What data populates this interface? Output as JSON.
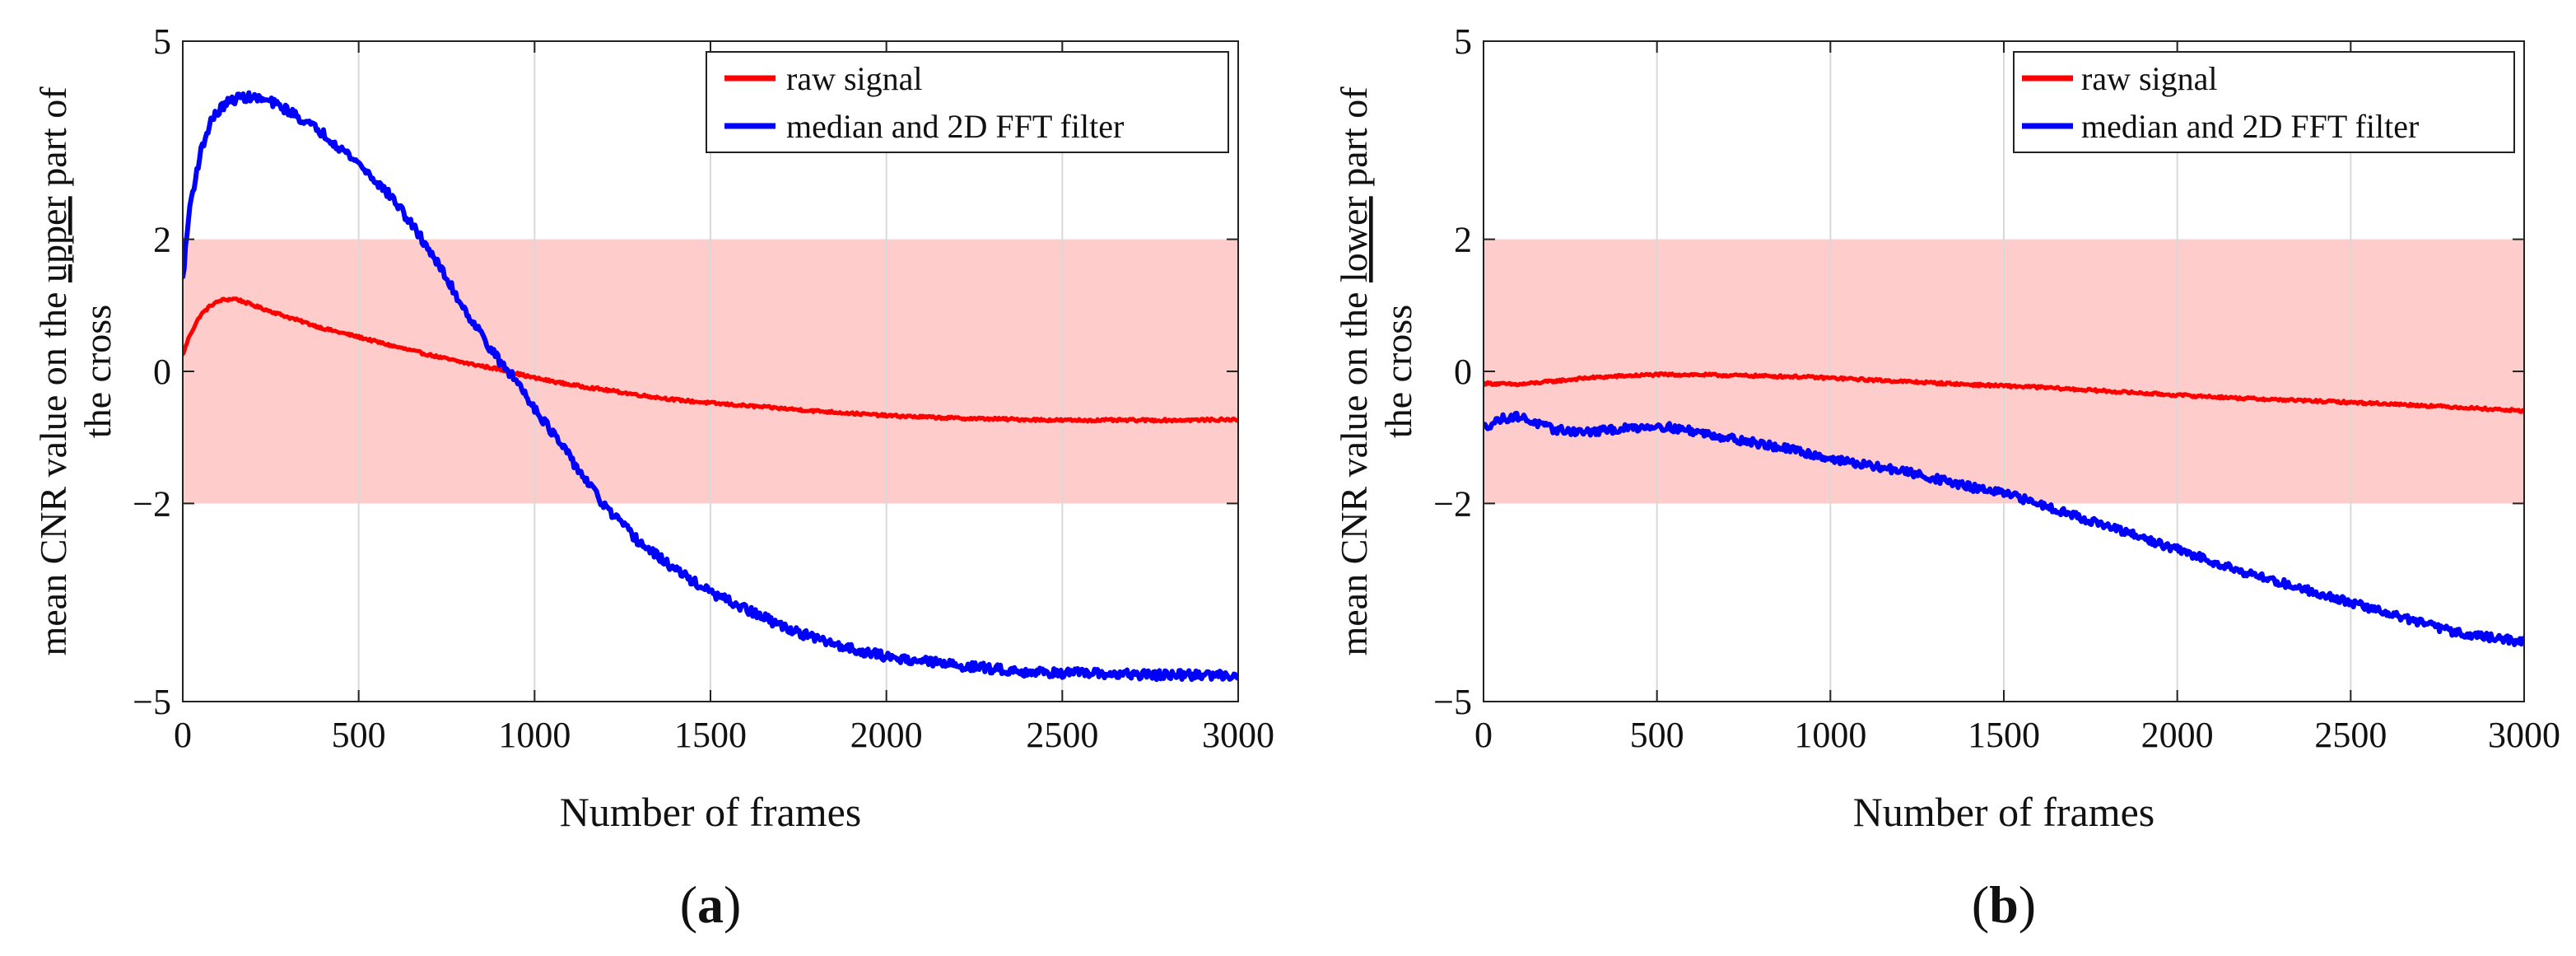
{
  "figure": {
    "panel_labels": [
      {
        "open": "(",
        "letter": "a",
        "close": ")"
      },
      {
        "open": "(",
        "letter": "b",
        "close": ")"
      }
    ]
  },
  "chart_data": [
    {
      "type": "line",
      "panel": "a",
      "xlabel": "Number of frames",
      "ylabel": {
        "line1_prefix": "mean CNR value on the ",
        "line1_underlined": "upper",
        "line1_suffix": " part of",
        "line2": "the cross"
      },
      "xlim": [
        0,
        3000
      ],
      "ylim": [
        -5,
        5
      ],
      "xticks": [
        0,
        500,
        1000,
        1500,
        2000,
        2500,
        3000
      ],
      "yticks": [
        -5,
        -2,
        0,
        2,
        5
      ],
      "xtick_labels": [
        "0",
        "500",
        "1000",
        "1500",
        "2000",
        "2500",
        "3000"
      ],
      "ytick_labels": [
        "−5",
        "−2",
        "0",
        "2",
        "5"
      ],
      "grid": "vertical",
      "legend_position": "top-right",
      "shaded_band": {
        "y_from": -2,
        "y_to": 2,
        "color": "#ffcccc"
      },
      "series": [
        {
          "name": "raw signal",
          "color": "#ff0000",
          "noise": 0.02,
          "x": [
            0,
            20,
            50,
            80,
            110,
            150,
            200,
            300,
            400,
            500,
            600,
            700,
            800,
            900,
            1000,
            1100,
            1200,
            1300,
            1400,
            1500,
            1600,
            1800,
            2000,
            2200,
            2500,
            2800,
            3000
          ],
          "y": [
            0.25,
            0.55,
            0.85,
            1.0,
            1.08,
            1.1,
            1.0,
            0.82,
            0.65,
            0.52,
            0.38,
            0.25,
            0.13,
            0.03,
            -0.1,
            -0.2,
            -0.28,
            -0.36,
            -0.43,
            -0.48,
            -0.52,
            -0.6,
            -0.67,
            -0.71,
            -0.74,
            -0.74,
            -0.73
          ]
        },
        {
          "name": "median and 2D FFT filter",
          "color": "#0000ff",
          "noise": 0.07,
          "x": [
            0,
            20,
            50,
            80,
            120,
            160,
            200,
            250,
            300,
            400,
            500,
            600,
            700,
            800,
            900,
            950,
            1000,
            1100,
            1200,
            1300,
            1400,
            1500,
            1600,
            1700,
            1800,
            1900,
            2000,
            2200,
            2400,
            2600,
            2800,
            3000
          ],
          "y": [
            1.4,
            2.5,
            3.3,
            3.8,
            4.05,
            4.15,
            4.15,
            4.08,
            3.95,
            3.6,
            3.15,
            2.6,
            1.85,
            0.95,
            0.15,
            -0.15,
            -0.55,
            -1.3,
            -2.05,
            -2.6,
            -3.0,
            -3.35,
            -3.6,
            -3.85,
            -4.05,
            -4.2,
            -4.32,
            -4.45,
            -4.55,
            -4.58,
            -4.6,
            -4.6
          ]
        }
      ]
    },
    {
      "type": "line",
      "panel": "b",
      "xlabel": "Number of frames",
      "ylabel": {
        "line1_prefix": "mean CNR value on the ",
        "line1_underlined": "lower",
        "line1_suffix": " part of",
        "line2": "the cross"
      },
      "xlim": [
        0,
        3000
      ],
      "ylim": [
        -5,
        5
      ],
      "xticks": [
        0,
        500,
        1000,
        1500,
        2000,
        2500,
        3000
      ],
      "yticks": [
        -5,
        -2,
        0,
        2,
        5
      ],
      "xtick_labels": [
        "0",
        "500",
        "1000",
        "1500",
        "2000",
        "2500",
        "3000"
      ],
      "ytick_labels": [
        "−5",
        "−2",
        "0",
        "2",
        "5"
      ],
      "grid": "vertical",
      "legend_position": "top-right",
      "shaded_band": {
        "y_from": -2,
        "y_to": 2,
        "color": "#ffcccc"
      },
      "series": [
        {
          "name": "raw signal",
          "color": "#ff0000",
          "noise": 0.02,
          "x": [
            0,
            100,
            200,
            300,
            400,
            500,
            600,
            700,
            800,
            900,
            1000,
            1200,
            1400,
            1600,
            1800,
            2000,
            2200,
            2400,
            2600,
            2800,
            3000
          ],
          "y": [
            -0.18,
            -0.2,
            -0.15,
            -0.1,
            -0.07,
            -0.05,
            -0.05,
            -0.06,
            -0.07,
            -0.08,
            -0.1,
            -0.15,
            -0.2,
            -0.24,
            -0.3,
            -0.36,
            -0.41,
            -0.45,
            -0.49,
            -0.54,
            -0.6
          ]
        },
        {
          "name": "median and 2D FFT filter",
          "color": "#0000ff",
          "noise": 0.06,
          "x": [
            0,
            50,
            100,
            150,
            200,
            300,
            400,
            500,
            600,
            700,
            800,
            900,
            1000,
            1100,
            1200,
            1300,
            1400,
            1500,
            1600,
            1800,
            2000,
            2200,
            2400,
            2600,
            2800,
            3000
          ],
          "y": [
            -0.85,
            -0.72,
            -0.68,
            -0.78,
            -0.88,
            -0.92,
            -0.87,
            -0.82,
            -0.9,
            -1.0,
            -1.1,
            -1.2,
            -1.32,
            -1.42,
            -1.5,
            -1.62,
            -1.75,
            -1.85,
            -2.0,
            -2.35,
            -2.7,
            -3.05,
            -3.35,
            -3.65,
            -3.95,
            -4.1
          ]
        }
      ]
    }
  ]
}
